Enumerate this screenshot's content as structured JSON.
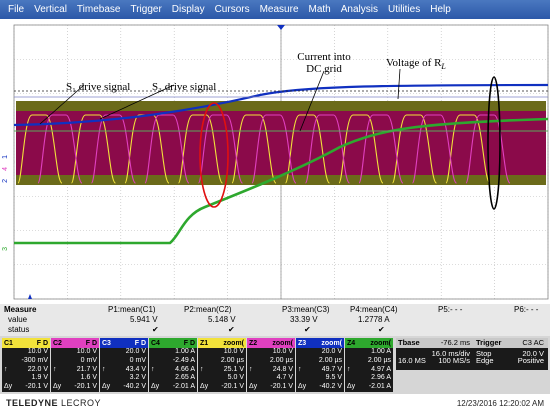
{
  "menu": [
    "File",
    "Vertical",
    "Timebase",
    "Trigger",
    "Display",
    "Cursors",
    "Measure",
    "Math",
    "Analysis",
    "Utilities",
    "Help"
  ],
  "annotations": {
    "s1": "S₁ drive signal",
    "s3": "S₃ drive signal",
    "current_line1": "Current into",
    "current_line2": "DC grid",
    "voltage": "Voltage of R"
  },
  "channel_tags": [
    "1",
    "4",
    "2",
    "3"
  ],
  "colors": {
    "c1": "#f2e23a",
    "c2": "#e040c0",
    "c3": "#1030c0",
    "c4": "#2ea82e",
    "fill": "#8b0a4a",
    "olive": "#6b6a1a",
    "red_mark": "#e01010"
  },
  "measure": {
    "label": "Measure",
    "row_value": "value",
    "row_status": "status",
    "params": [
      {
        "name": "P1:mean(C1)",
        "value": "5.941 V",
        "status": "✔"
      },
      {
        "name": "P2:mean(C2)",
        "value": "5.148 V",
        "status": "✔"
      },
      {
        "name": "P3:mean(C3)",
        "value": "33.39 V",
        "status": "✔"
      },
      {
        "name": "P4:mean(C4)",
        "value": "1.2778 A",
        "status": "✔"
      },
      {
        "name": "P5:- - -",
        "value": "",
        "status": ""
      },
      {
        "name": "P6:- - -",
        "value": "",
        "status": ""
      }
    ]
  },
  "channels": [
    {
      "tag": "C1",
      "flags": "F D",
      "color": "#f2e23a",
      "lines": [
        "10.0 V",
        "-300 mV",
        "22.0 V",
        "1.9 V",
        "-20.1 V"
      ]
    },
    {
      "tag": "C2",
      "flags": "F D",
      "color": "#e040c0",
      "lines": [
        "10.0 V",
        "0 mV",
        "21.7 V",
        "1.6 V",
        "-20.1 V"
      ]
    },
    {
      "tag": "C3",
      "flags": "F D",
      "color": "#1030c0",
      "lines": [
        "20.0 V",
        "0 mV",
        "43.4 V",
        "3.2 V",
        "-40.2 V"
      ]
    },
    {
      "tag": "C4",
      "flags": "F D",
      "color": "#2ea82e",
      "lines": [
        "1.00 A",
        "-2.49 A",
        "4.66 A",
        "2.65 A",
        "-2.01 A"
      ]
    },
    {
      "tag": "Z1",
      "flags": "zoom(",
      "color": "#f2e23a",
      "lines": [
        "10.0 V",
        "2.00 µs",
        "25.1 V",
        "5.0 V",
        "-20.1 V"
      ]
    },
    {
      "tag": "Z2",
      "flags": "zoom(",
      "color": "#e040c0",
      "lines": [
        "10.0 V",
        "2.00 µs",
        "24.8 V",
        "4.7 V",
        "-20.1 V"
      ]
    },
    {
      "tag": "Z3",
      "flags": "zoom(",
      "color": "#1030c0",
      "lines": [
        "20.0 V",
        "2.00 µs",
        "49.7 V",
        "9.5 V",
        "-40.2 V"
      ]
    },
    {
      "tag": "Z4",
      "flags": "zoom(",
      "color": "#2ea82e",
      "lines": [
        "1.00 A",
        "2.00 µs",
        "4.97 A",
        "2.96 A",
        "-2.01 A"
      ]
    }
  ],
  "line_prefixes": [
    "",
    "",
    "↑",
    "",
    "Δy"
  ],
  "timebase": {
    "title": "Tbase",
    "offset": "-76.2 ms",
    "trig_title": "Trigger",
    "trig_flags": "C3 AC",
    "div": "16.0 ms/div",
    "stop": "Stop",
    "trig_level": "20.0 V",
    "samples": "16.0 MS",
    "rate": "100 MS/s",
    "edge": "Edge",
    "slope": "Positive"
  },
  "footer": {
    "brand_bold": "TELEDYNE",
    "brand_light": " LECROY",
    "timestamp": "12/23/2016 12:20:02 AM"
  }
}
